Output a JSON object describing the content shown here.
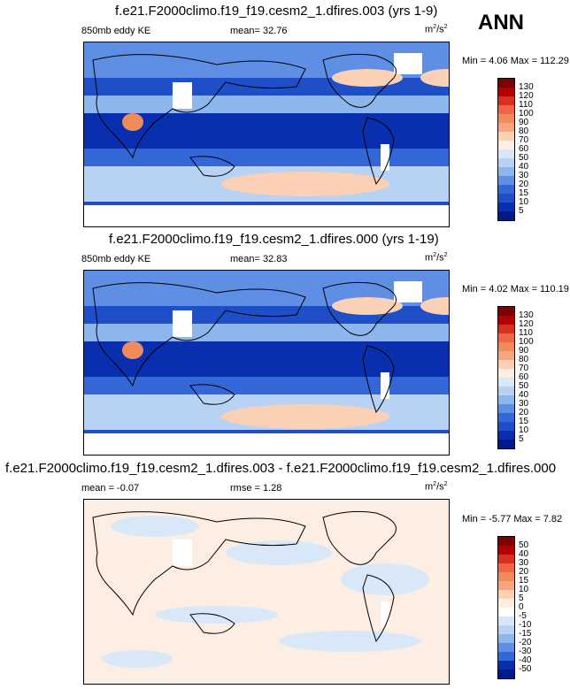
{
  "season": "ANN",
  "panels": [
    {
      "title": "f.e21.F2000climo.f19_f19.cesm2_1.dfires.003 (yrs 1-9)",
      "left_label": "850mb eddy KE",
      "mid_label": "mean=  32.76",
      "units_base": "m",
      "units_exp1": "2",
      "units_mid": "/s",
      "units_exp2": "2",
      "minmax": "Min =   4.06 Max = 112.29",
      "colorbar": {
        "levels": [
          "130",
          "120",
          "110",
          "100",
          "90",
          "80",
          "70",
          "60",
          "50",
          "40",
          "30",
          "20",
          "15",
          "10",
          "5"
        ],
        "colors": [
          "#7f0000",
          "#b30000",
          "#d7301f",
          "#ef6548",
          "#f08c5c",
          "#f4a582",
          "#fcd0b4",
          "#fdeee4",
          "#d9e8f8",
          "#b7d2f3",
          "#8db6ec",
          "#5f8fe4",
          "#3366d6",
          "#1f4fc8",
          "#0a2fae",
          "#001a8a"
        ]
      },
      "chart_data": {
        "type": "heatmap",
        "variable": "850mb eddy KE",
        "units": "m2/s2",
        "mean": 32.76,
        "min": 4.06,
        "max": 112.29,
        "contour_levels": [
          5,
          10,
          15,
          20,
          30,
          40,
          50,
          60,
          70,
          80,
          90,
          100,
          110,
          120,
          130
        ]
      }
    },
    {
      "title": "f.e21.F2000climo.f19_f19.cesm2_1.dfires.000 (yrs 1-19)",
      "left_label": "850mb eddy KE",
      "mid_label": "mean=  32.83",
      "units_base": "m",
      "units_exp1": "2",
      "units_mid": "/s",
      "units_exp2": "2",
      "minmax": "Min =   4.02 Max = 110.19",
      "colorbar": {
        "levels": [
          "130",
          "120",
          "110",
          "100",
          "90",
          "80",
          "70",
          "60",
          "50",
          "40",
          "30",
          "20",
          "15",
          "10",
          "5"
        ],
        "colors": [
          "#7f0000",
          "#b30000",
          "#d7301f",
          "#ef6548",
          "#f08c5c",
          "#f4a582",
          "#fcd0b4",
          "#fdeee4",
          "#d9e8f8",
          "#b7d2f3",
          "#8db6ec",
          "#5f8fe4",
          "#3366d6",
          "#1f4fc8",
          "#0a2fae",
          "#001a8a"
        ]
      },
      "chart_data": {
        "type": "heatmap",
        "variable": "850mb eddy KE",
        "units": "m2/s2",
        "mean": 32.83,
        "min": 4.02,
        "max": 110.19,
        "contour_levels": [
          5,
          10,
          15,
          20,
          30,
          40,
          50,
          60,
          70,
          80,
          90,
          100,
          110,
          120,
          130
        ]
      }
    },
    {
      "title": "f.e21.F2000climo.f19_f19.cesm2_1.dfires.003 - f.e21.F2000climo.f19_f19.cesm2_1.dfires.000",
      "left_label": "mean =  -0.07",
      "mid_label": "rmse =   1.28",
      "units_base": "m",
      "units_exp1": "2",
      "units_mid": "/s",
      "units_exp2": "2",
      "minmax": "Min =  -5.77 Max =   7.82",
      "colorbar": {
        "levels": [
          "50",
          "40",
          "30",
          "20",
          "15",
          "10",
          "5",
          "0",
          "-5",
          "-10",
          "-15",
          "-20",
          "-30",
          "-40",
          "-50"
        ],
        "colors": [
          "#7f0000",
          "#b30000",
          "#d7301f",
          "#ef6548",
          "#f08c5c",
          "#f4a582",
          "#fcd0b4",
          "#fdeee4",
          "#ffffff",
          "#d9e8f8",
          "#b7d2f3",
          "#8db6ec",
          "#5f8fe4",
          "#3366d6",
          "#0a2fae",
          "#001a8a"
        ]
      },
      "chart_data": {
        "type": "heatmap",
        "variable": "difference",
        "units": "m2/s2",
        "mean": -0.07,
        "rmse": 1.28,
        "min": -5.77,
        "max": 7.82,
        "contour_levels": [
          -50,
          -40,
          -30,
          -20,
          -15,
          -10,
          -5,
          0,
          5,
          10,
          15,
          20,
          30,
          40,
          50
        ]
      }
    }
  ]
}
